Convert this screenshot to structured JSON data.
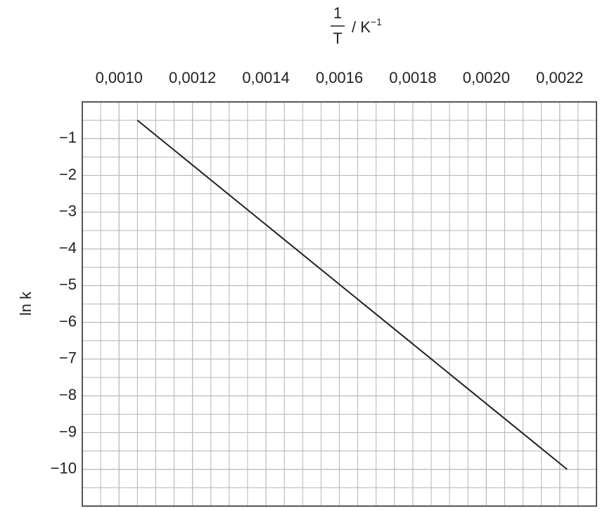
{
  "chart_data": {
    "type": "line",
    "x_label": {
      "numerator": "1",
      "denominator": "T",
      "unit": "/ K",
      "exponent": "−1"
    },
    "y_label": "ln k",
    "x": [
      0.00105,
      0.00222
    ],
    "series": [
      {
        "name": null,
        "color": "#231f20",
        "values": [
          -0.5,
          -10
        ]
      }
    ],
    "xlim": [
      0.0009,
      0.0023
    ],
    "ylim": [
      -11,
      0
    ],
    "xticks": [
      {
        "value": 0.001,
        "label": "0,0010"
      },
      {
        "value": 0.0012,
        "label": "0,0012"
      },
      {
        "value": 0.0014,
        "label": "0,0014"
      },
      {
        "value": 0.0016,
        "label": "0,0016"
      },
      {
        "value": 0.0018,
        "label": "0,0018"
      },
      {
        "value": 0.002,
        "label": "0,0020"
      },
      {
        "value": 0.0022,
        "label": "0,0022"
      }
    ],
    "yticks": [
      {
        "value": -1,
        "label": "−1"
      },
      {
        "value": -2,
        "label": "−2"
      },
      {
        "value": -3,
        "label": "−3"
      },
      {
        "value": -4,
        "label": "−4"
      },
      {
        "value": -5,
        "label": "−5"
      },
      {
        "value": -6,
        "label": "−6"
      },
      {
        "value": -7,
        "label": "−7"
      },
      {
        "value": -8,
        "label": "−8"
      },
      {
        "value": -9,
        "label": "−9"
      },
      {
        "value": -10,
        "label": "−10"
      }
    ],
    "grid": true
  }
}
